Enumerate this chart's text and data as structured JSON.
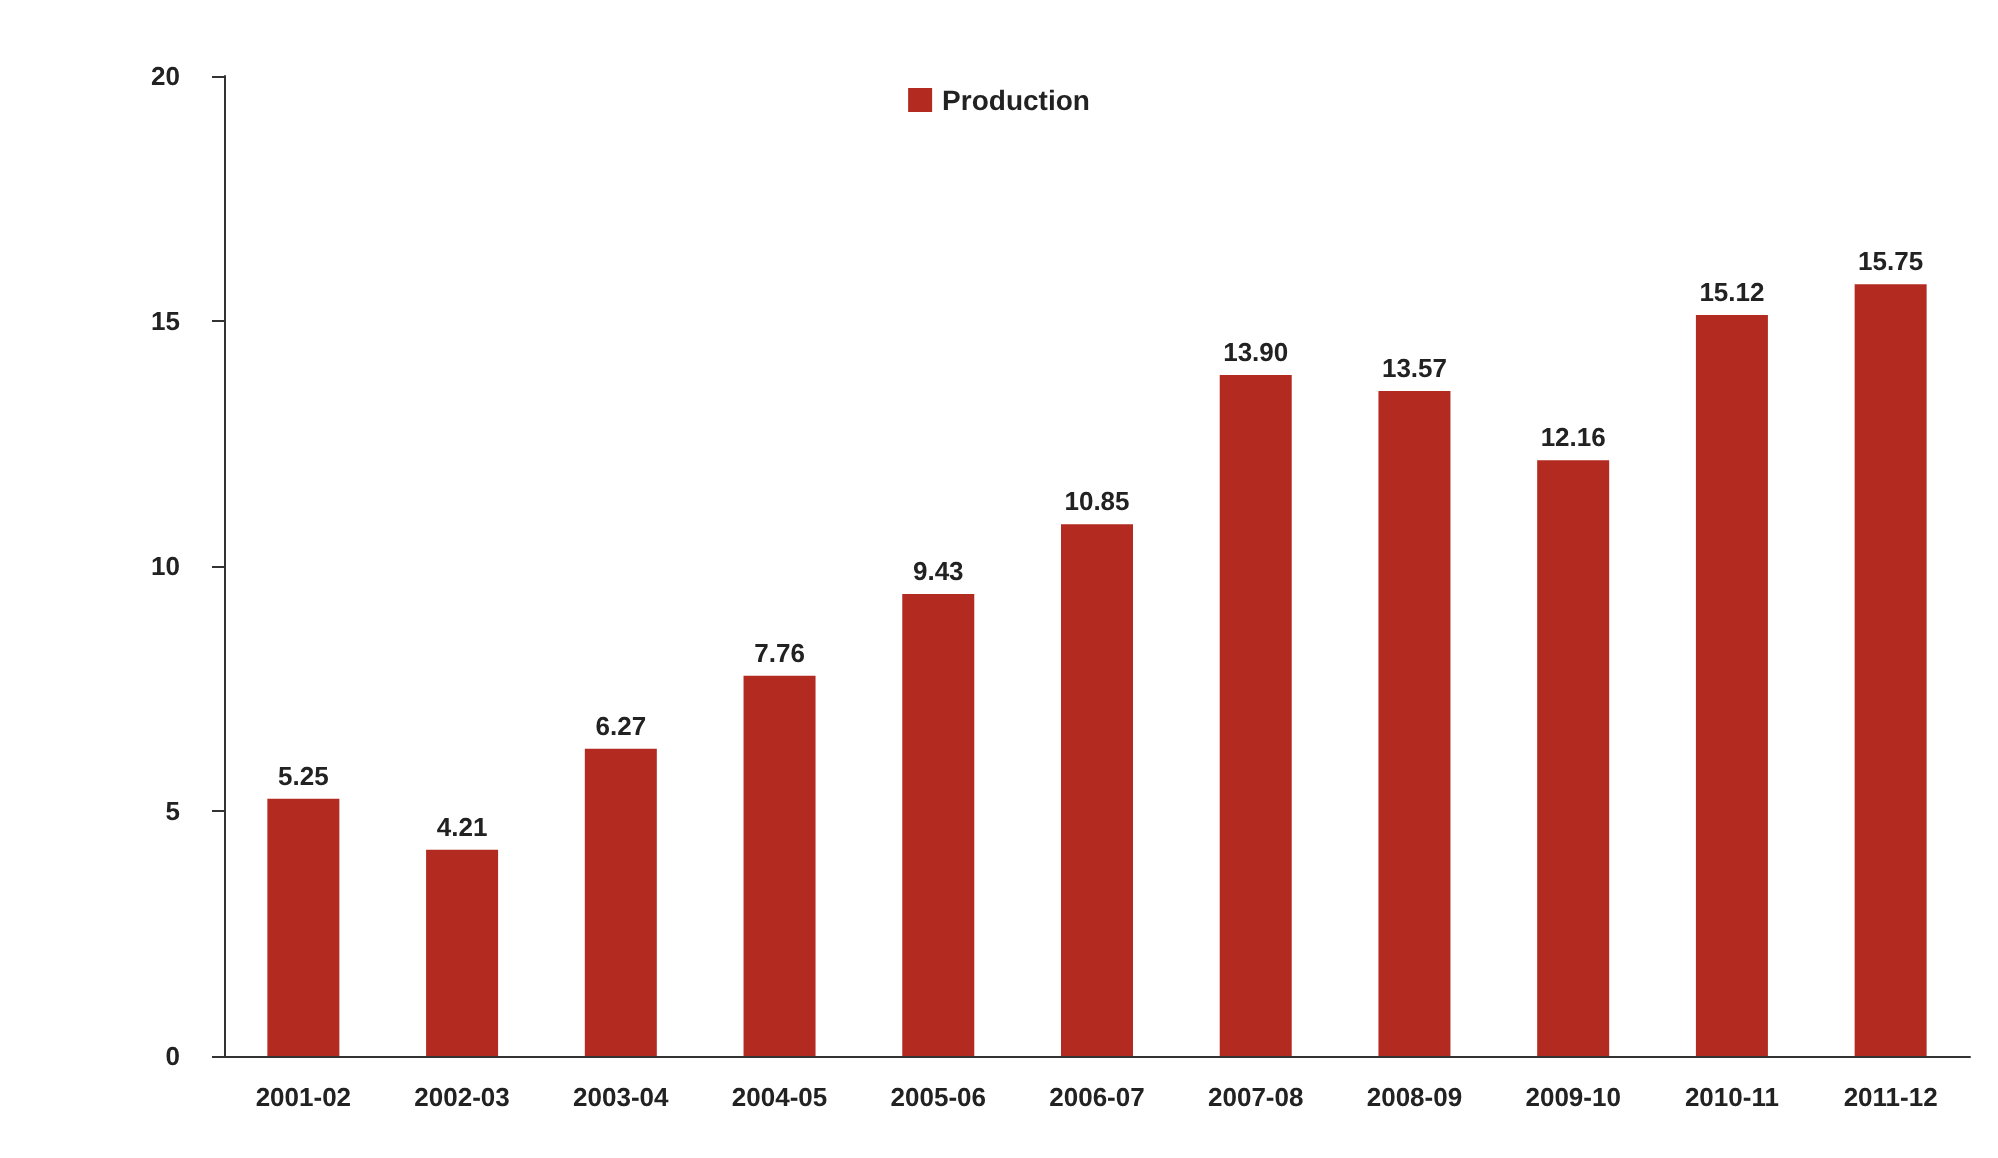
{
  "chart_data": {
    "type": "bar",
    "categories": [
      "2001-02",
      "2002-03",
      "2003-04",
      "2004-05",
      "2005-06",
      "2006-07",
      "2007-08",
      "2008-09",
      "2009-10",
      "2010-11",
      "2011-12"
    ],
    "series": [
      {
        "name": "Production",
        "color": "#b22a20",
        "values": [
          5.25,
          4.21,
          6.27,
          7.76,
          9.43,
          10.85,
          13.9,
          13.57,
          12.16,
          15.12,
          15.75
        ],
        "value_labels": [
          "5.25",
          "4.21",
          "6.27",
          "7.76",
          "9.43",
          "10.85",
          "13.90",
          "13.57",
          "12.16",
          "15.12",
          "15.75"
        ]
      }
    ],
    "ylim": [
      0,
      20
    ],
    "yticks": [
      0,
      5,
      10,
      15,
      20
    ],
    "grid": false,
    "legend": "top"
  }
}
